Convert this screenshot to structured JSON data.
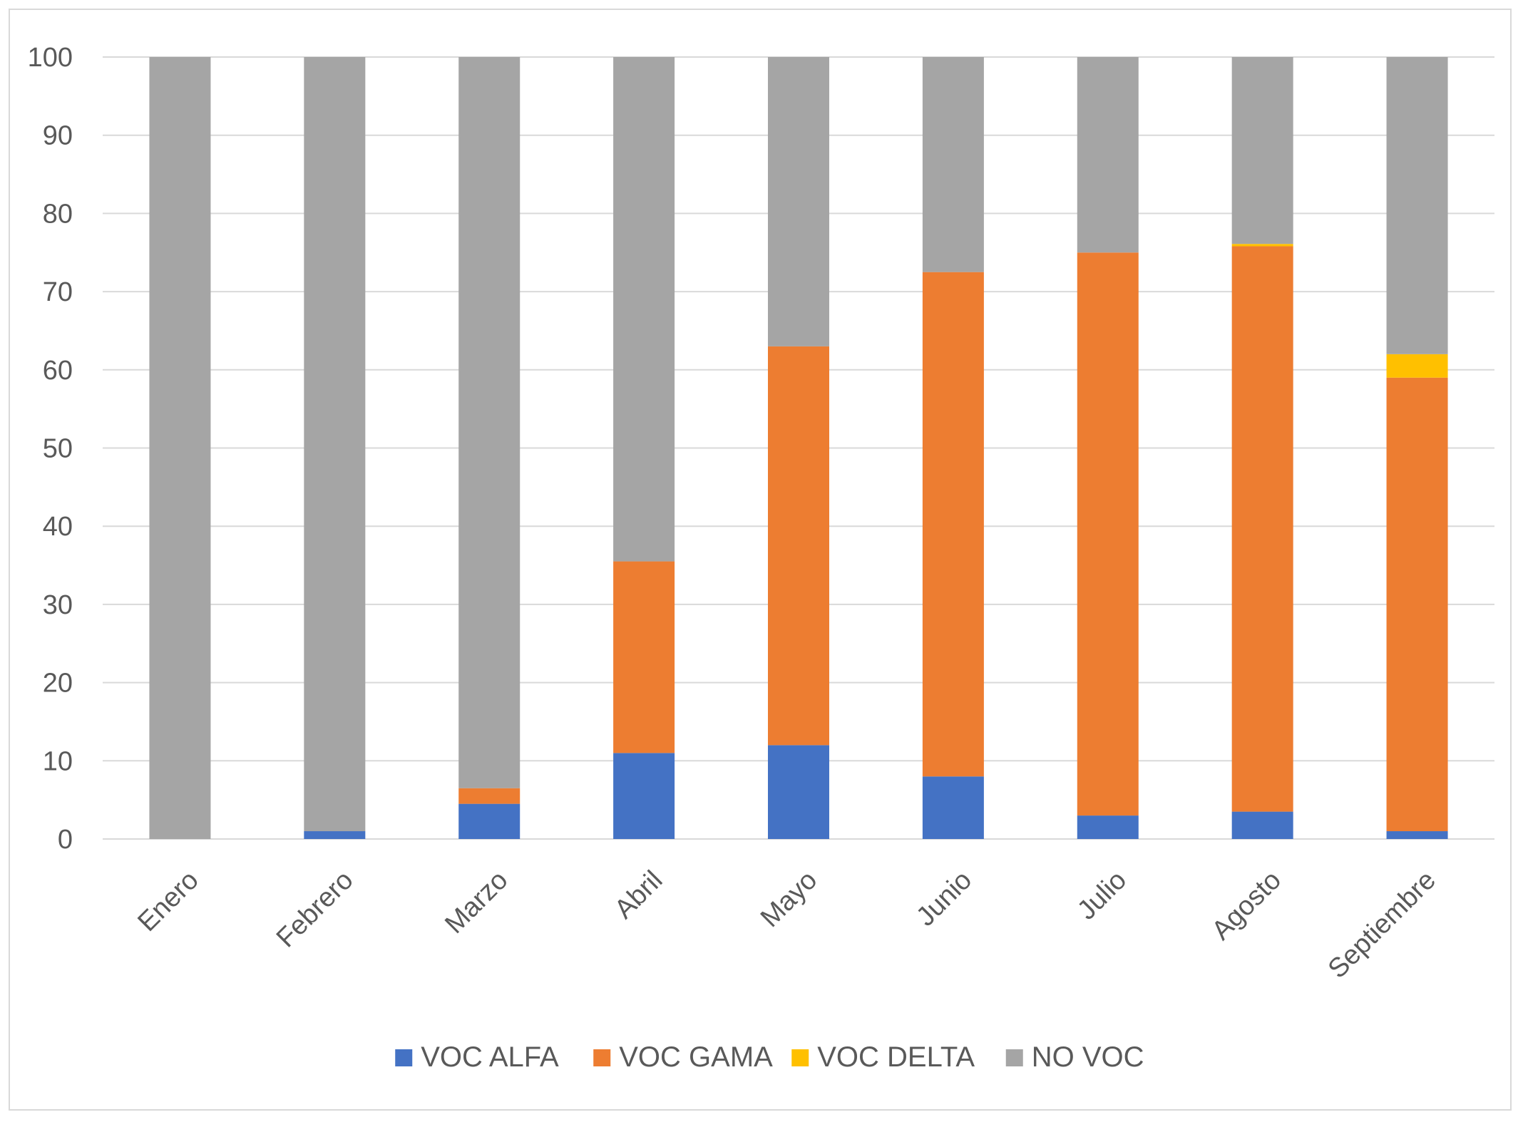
{
  "chart_data": {
    "type": "bar",
    "stacked": true,
    "categories": [
      "Enero",
      "Febrero",
      "Marzo",
      "Abril",
      "Mayo",
      "Junio",
      "Julio",
      "Agosto",
      "Septiembre"
    ],
    "series": [
      {
        "name": "VOC ALFA",
        "color": "#4472c4",
        "values": [
          0,
          1,
          4.5,
          11,
          12,
          8,
          3,
          3.5,
          1
        ]
      },
      {
        "name": "VOC GAMA",
        "color": "#ed7d31",
        "values": [
          0,
          0,
          2,
          24.5,
          51,
          64.5,
          72,
          72.3,
          58
        ]
      },
      {
        "name": "VOC DELTA",
        "color": "#ffc000",
        "values": [
          0,
          0,
          0,
          0,
          0,
          0,
          0,
          0.3,
          3
        ]
      },
      {
        "name": "NO VOC",
        "color": "#a5a5a5",
        "values": [
          100,
          99,
          93.5,
          64.5,
          37,
          27.5,
          25,
          23.9,
          38
        ]
      }
    ],
    "ylim": [
      0,
      100
    ],
    "yticks": [
      "0",
      "10",
      "20",
      "30",
      "40",
      "50",
      "60",
      "70",
      "80",
      "90",
      "100"
    ],
    "grid": true,
    "legend_position": "bottom",
    "gridline_color": "#d9d9d9"
  }
}
